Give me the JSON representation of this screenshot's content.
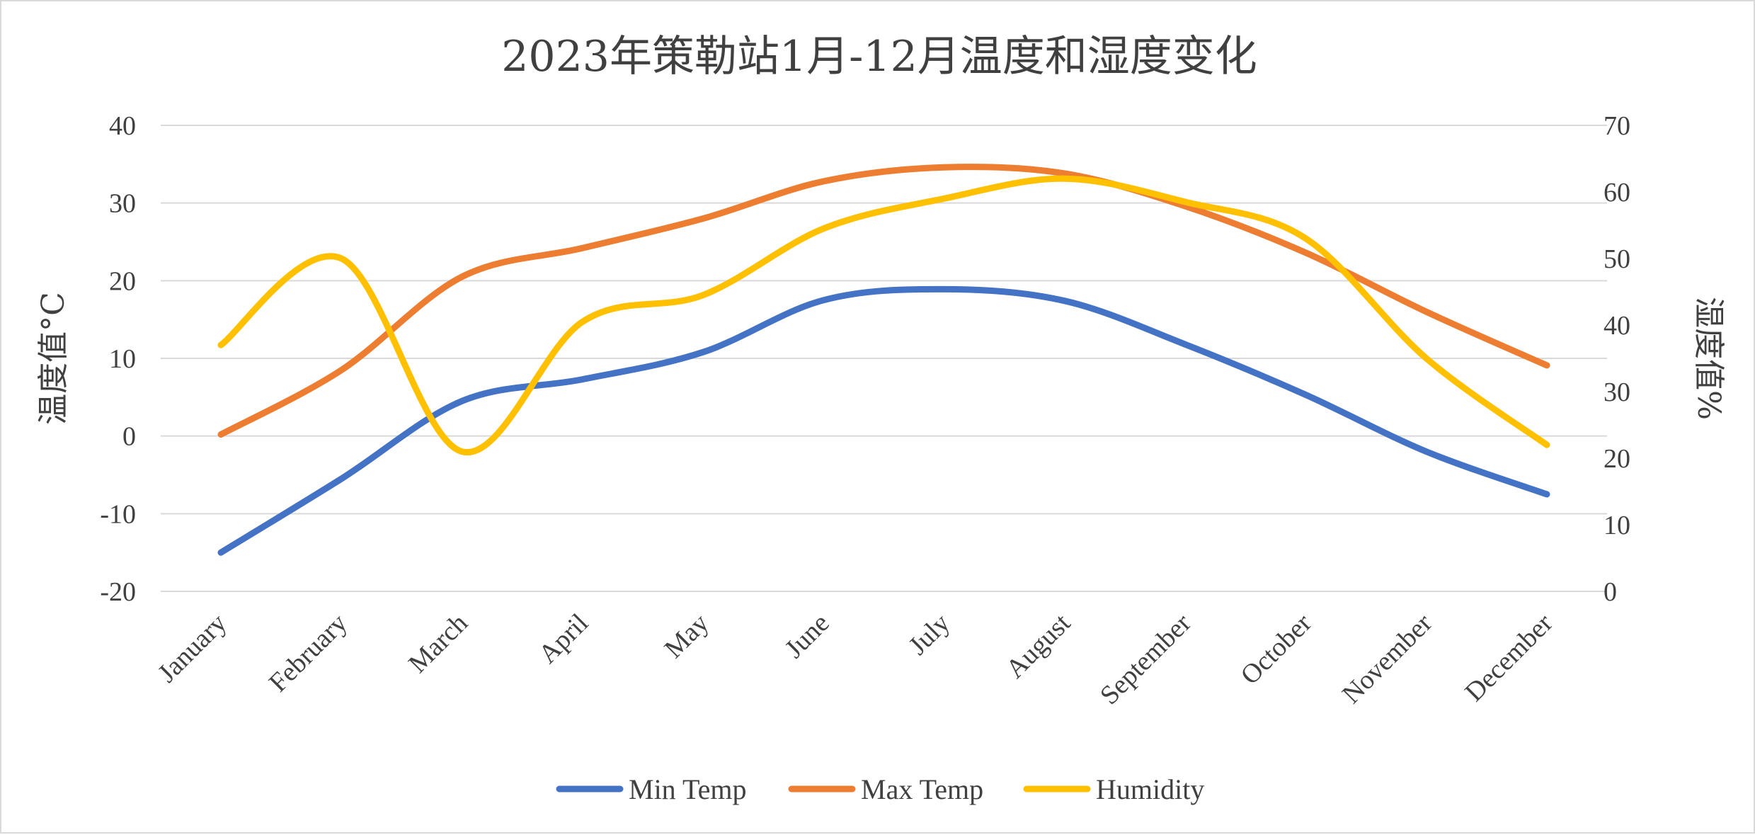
{
  "chart_data": {
    "type": "line",
    "title": "2023年策勒站1月-12月温度和湿度变化",
    "categories": [
      "January",
      "February",
      "March",
      "April",
      "May",
      "June",
      "July",
      "August",
      "September",
      "October",
      "November",
      "December"
    ],
    "ylabel": "温度值°C",
    "y2label": "湿度值%",
    "ylim": [
      -20,
      40
    ],
    "y_ticks": [
      40,
      30,
      20,
      10,
      0,
      -10,
      -20
    ],
    "y2lim": [
      0,
      70
    ],
    "y2_ticks": [
      70,
      60,
      50,
      40,
      30,
      20,
      10,
      0
    ],
    "grid": true,
    "smooth": true,
    "legend_position": "bottom",
    "series": [
      {
        "name": "Min Temp",
        "axis": "left",
        "color": "#4472C4",
        "values": [
          -15,
          -5.5,
          4.5,
          7.3,
          10.8,
          17.5,
          18.9,
          17.4,
          11.8,
          5.3,
          -2,
          -7.5
        ]
      },
      {
        "name": "Max Temp",
        "axis": "left",
        "color": "#ED7D31",
        "values": [
          0.2,
          8.5,
          20.5,
          24.2,
          28,
          32.8,
          34.6,
          33.8,
          29.6,
          23.6,
          16,
          9.1
        ]
      },
      {
        "name": "Humidity",
        "axis": "right",
        "color": "#FFC000",
        "values": [
          37,
          50,
          21,
          40.5,
          44.5,
          54.5,
          59,
          62,
          58.5,
          53,
          35,
          22
        ]
      }
    ]
  }
}
